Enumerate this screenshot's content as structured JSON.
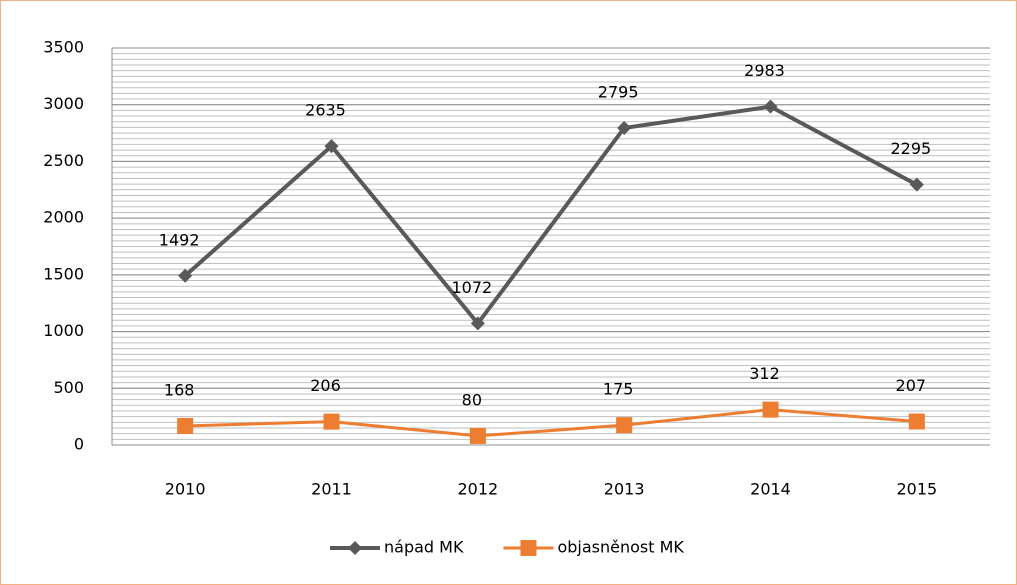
{
  "chart_data": {
    "type": "line",
    "categories": [
      "2010",
      "2011",
      "2012",
      "2013",
      "2014",
      "2015"
    ],
    "series": [
      {
        "name": "nápad MK",
        "color": "#595959",
        "marker": "diamond",
        "values": [
          1492,
          2635,
          1072,
          2795,
          2983,
          2295
        ]
      },
      {
        "name": "objasněnost MK",
        "color": "#ed7d31",
        "marker": "square",
        "values": [
          168,
          206,
          80,
          175,
          312,
          207
        ]
      }
    ],
    "ylim": [
      0,
      3500
    ],
    "yticks": [
      0,
      500,
      1000,
      1500,
      2000,
      2500,
      3000,
      3500
    ],
    "grid": true,
    "minor_grid_step": 50,
    "legend": "bottom"
  }
}
